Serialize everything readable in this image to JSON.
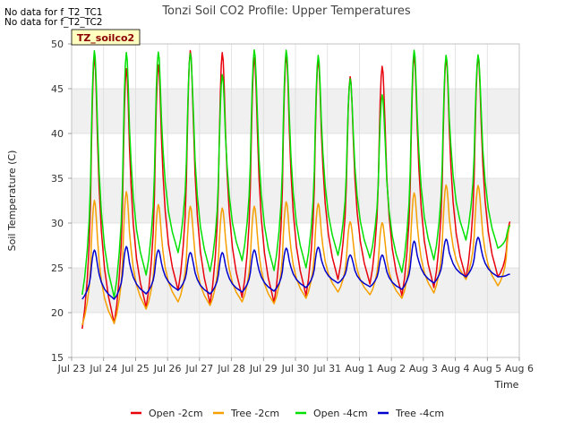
{
  "notes": [
    "No data for f_T2_TC1",
    "No data for f_T2_TC2"
  ],
  "chart_data": {
    "type": "line",
    "title": "Tonzi Soil CO2 Profile: Upper Temperatures",
    "badge": "TZ_soilco2",
    "xlabel": "Time",
    "ylabel": "Soil Temperature (C)",
    "xlim": [
      "Jul 23",
      "Aug 6"
    ],
    "ylim": [
      15,
      50
    ],
    "x_ticks": [
      "Jul 23",
      "Jul 24",
      "Jul 25",
      "Jul 26",
      "Jul 27",
      "Jul 28",
      "Jul 29",
      "Jul 30",
      "Jul 31",
      "Aug 1",
      "Aug 2",
      "Aug 3",
      "Aug 4",
      "Aug 5",
      "Aug 6"
    ],
    "y_ticks": [
      15,
      20,
      25,
      30,
      35,
      40,
      45,
      50
    ],
    "grid": true,
    "legend_position": "bottom",
    "series": [
      {
        "name": "Open -2cm",
        "color": "#e8000b",
        "days": [
          "Jul 23",
          "Jul 24",
          "Jul 25",
          "Jul 26",
          "Jul 27",
          "Jul 28",
          "Jul 29",
          "Jul 30",
          "Jul 31",
          "Aug 1",
          "Aug 2",
          "Aug 3",
          "Aug 4",
          "Aug 5"
        ],
        "highs": [
          49.2,
          47.8,
          48.2,
          49.8,
          49.6,
          49.0,
          49.3,
          48.8,
          46.8,
          48.0,
          49.2,
          48.9,
          49.1,
          30.3
        ],
        "lows": [
          18.2,
          18.8,
          20.6,
          22.5,
          21.0,
          21.7,
          21.1,
          21.9,
          23.7,
          23.2,
          21.9,
          22.8,
          23.8,
          24.0
        ]
      },
      {
        "name": "Tree -2cm",
        "color": "#f5a000",
        "days": [
          "Jul 23",
          "Jul 24",
          "Jul 25",
          "Jul 26",
          "Jul 27",
          "Jul 28",
          "Jul 29",
          "Jul 30",
          "Jul 31",
          "Aug 1",
          "Aug 2",
          "Aug 3",
          "Aug 4",
          "Aug 5"
        ],
        "highs": [
          32.8,
          33.8,
          32.3,
          32.1,
          31.9,
          32.1,
          32.6,
          32.4,
          30.3,
          30.2,
          33.6,
          34.5,
          34.4,
          30.0
        ],
        "lows": [
          18.6,
          18.8,
          20.4,
          21.2,
          20.8,
          21.2,
          21.0,
          21.6,
          22.3,
          22.0,
          21.6,
          22.2,
          23.7,
          23.0
        ]
      },
      {
        "name": "Open -4cm",
        "color": "#00e000",
        "days": [
          "Jul 23",
          "Jul 24",
          "Jul 25",
          "Jul 26",
          "Jul 27",
          "Jul 28",
          "Jul 29",
          "Jul 30",
          "Jul 31",
          "Aug 1",
          "Aug 2",
          "Aug 3",
          "Aug 4",
          "Aug 5"
        ],
        "highs": [
          49.8,
          49.6,
          49.6,
          49.4,
          47.0,
          49.8,
          49.8,
          49.2,
          46.5,
          44.7,
          49.8,
          49.2,
          49.2,
          29.8
        ],
        "lows": [
          22.0,
          21.7,
          24.2,
          26.7,
          24.6,
          25.8,
          24.7,
          25.0,
          26.4,
          26.1,
          24.5,
          25.9,
          28.1,
          27.2
        ]
      },
      {
        "name": "Tree -4cm",
        "color": "#0000cc",
        "days": [
          "Jul 23",
          "Jul 24",
          "Jul 25",
          "Jul 26",
          "Jul 27",
          "Jul 28",
          "Jul 29",
          "Jul 30",
          "Jul 31",
          "Aug 1",
          "Aug 2",
          "Aug 3",
          "Aug 4",
          "Aug 5"
        ],
        "highs": [
          27.1,
          27.5,
          27.1,
          26.8,
          26.8,
          27.1,
          27.3,
          27.4,
          26.5,
          26.5,
          28.1,
          28.3,
          28.5,
          24.3
        ],
        "lows": [
          21.5,
          21.5,
          22.1,
          22.5,
          22.1,
          22.3,
          22.4,
          22.8,
          23.3,
          22.9,
          22.6,
          23.3,
          24.0,
          24.0
        ]
      }
    ]
  }
}
